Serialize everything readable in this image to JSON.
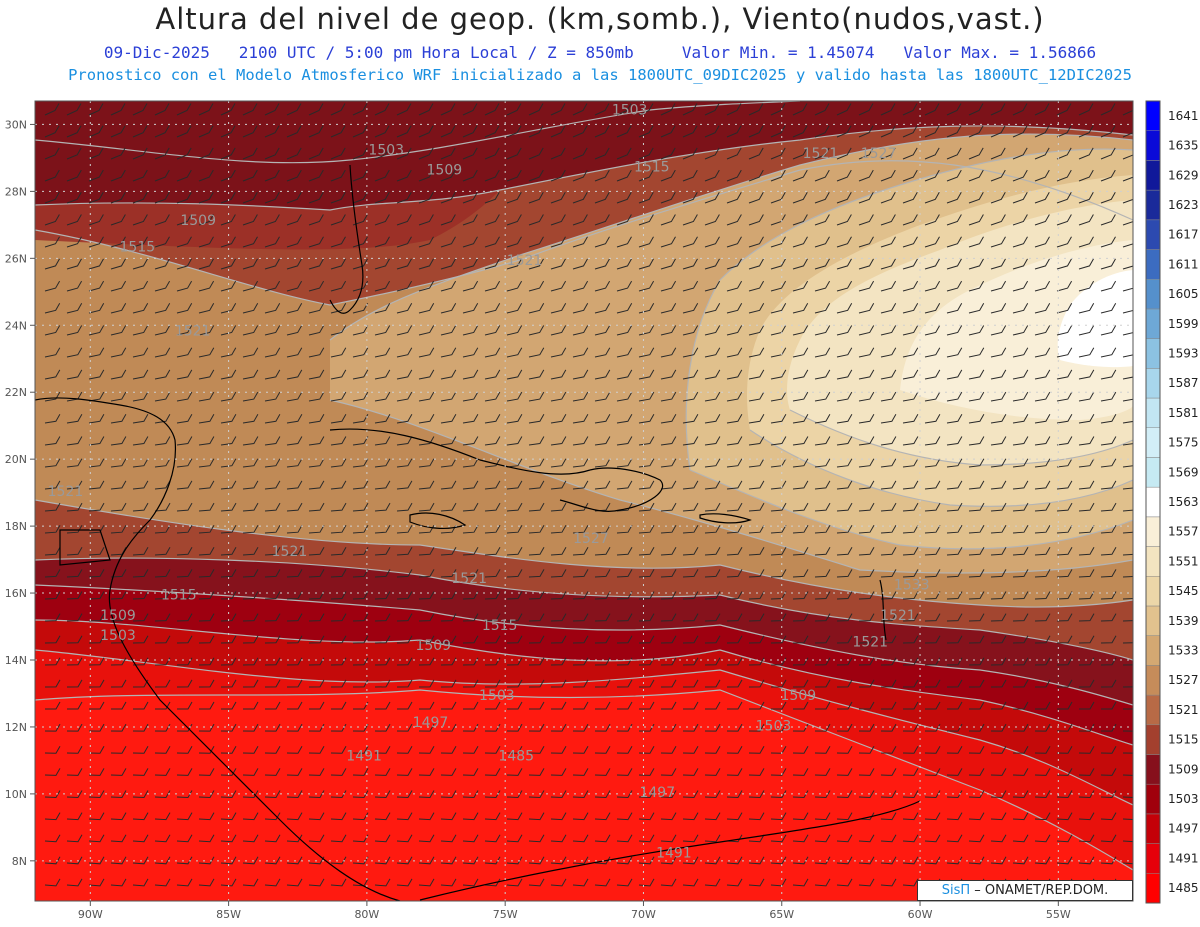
{
  "header": {
    "title": "Altura del nivel de geop. (km,somb.), Viento(nudos,vast.)",
    "date": "09-Dic-2025",
    "time": "2100 UTC / 5:00 pm Hora Local / Z = 850mb",
    "min": "Valor Min. = 1.45074",
    "max": "Valor Max. = 1.56866",
    "model": "Pronostico con el Modelo Atmosferico WRF inicializado a las 1800UTC_09DIC2025 y valido hasta las  1800UTC_12DIC2025"
  },
  "map": {
    "lon_range": [
      -92,
      -52.3
    ],
    "lat_range": [
      6.8,
      30.7
    ],
    "lon_ticks": [
      {
        "v": -90,
        "l": "90W"
      },
      {
        "v": -85,
        "l": "85W"
      },
      {
        "v": -80,
        "l": "80W"
      },
      {
        "v": -75,
        "l": "75W"
      },
      {
        "v": -70,
        "l": "70W"
      },
      {
        "v": -65,
        "l": "65W"
      },
      {
        "v": -60,
        "l": "60W"
      },
      {
        "v": -55,
        "l": "55W"
      }
    ],
    "lat_ticks": [
      {
        "v": 8,
        "l": "8N"
      },
      {
        "v": 10,
        "l": "10N"
      },
      {
        "v": 12,
        "l": "12N"
      },
      {
        "v": 14,
        "l": "14N"
      },
      {
        "v": 16,
        "l": "16N"
      },
      {
        "v": 18,
        "l": "18N"
      },
      {
        "v": 20,
        "l": "20N"
      },
      {
        "v": 22,
        "l": "22N"
      },
      {
        "v": 24,
        "l": "24N"
      },
      {
        "v": 26,
        "l": "26N"
      },
      {
        "v": 28,
        "l": "28N"
      },
      {
        "v": 30,
        "l": "30N"
      }
    ],
    "contour_labels": [
      {
        "t": "1503",
        "lon": -70.5,
        "lat": 30.3
      },
      {
        "t": "1503",
        "lon": -79.3,
        "lat": 29.1
      },
      {
        "t": "1509",
        "lon": -77.2,
        "lat": 28.5
      },
      {
        "t": "1515",
        "lon": -69.7,
        "lat": 28.6
      },
      {
        "t": "1521",
        "lon": -63.6,
        "lat": 29.0
      },
      {
        "t": "1527",
        "lon": -61.5,
        "lat": 29.0
      },
      {
        "t": "1509",
        "lon": -86.1,
        "lat": 27.0
      },
      {
        "t": "1515",
        "lon": -88.3,
        "lat": 26.2
      },
      {
        "t": "1521",
        "lon": -74.3,
        "lat": 25.8
      },
      {
        "t": "1521",
        "lon": -86.3,
        "lat": 23.7
      },
      {
        "t": "1521",
        "lon": -90.9,
        "lat": 18.9
      },
      {
        "t": "1521",
        "lon": -82.8,
        "lat": 17.1
      },
      {
        "t": "1521",
        "lon": -76.3,
        "lat": 16.3
      },
      {
        "t": "1527",
        "lon": -71.9,
        "lat": 17.5
      },
      {
        "t": "1515",
        "lon": -86.8,
        "lat": 15.8
      },
      {
        "t": "1509",
        "lon": -89.0,
        "lat": 15.2
      },
      {
        "t": "1503",
        "lon": -89.0,
        "lat": 14.6
      },
      {
        "t": "1509",
        "lon": -77.6,
        "lat": 14.3
      },
      {
        "t": "1515",
        "lon": -75.2,
        "lat": 14.9
      },
      {
        "t": "1503",
        "lon": -75.3,
        "lat": 12.8
      },
      {
        "t": "1497",
        "lon": -77.7,
        "lat": 12.0
      },
      {
        "t": "1509",
        "lon": -64.4,
        "lat": 12.8
      },
      {
        "t": "1503",
        "lon": -65.3,
        "lat": 11.9
      },
      {
        "t": "1491",
        "lon": -80.1,
        "lat": 11.0
      },
      {
        "t": "1485",
        "lon": -74.6,
        "lat": 11.0
      },
      {
        "t": "1497",
        "lon": -69.5,
        "lat": 9.9
      },
      {
        "t": "1491",
        "lon": -68.9,
        "lat": 8.1
      },
      {
        "t": "1521",
        "lon": -61.8,
        "lat": 14.4
      },
      {
        "t": "1521",
        "lon": -60.8,
        "lat": 15.2
      },
      {
        "t": "1533",
        "lon": -60.3,
        "lat": 16.1
      }
    ]
  },
  "colorbar": {
    "levels": [
      1485,
      1491,
      1497,
      1503,
      1509,
      1515,
      1521,
      1527,
      1533,
      1539,
      1545,
      1551,
      1557,
      1563,
      1569,
      1575,
      1581,
      1587,
      1593,
      1599,
      1605,
      1611,
      1617,
      1623,
      1629,
      1635,
      1641
    ],
    "labels": [
      "1485",
      "1491",
      "1497",
      "1503",
      "1509",
      "1515",
      "1521",
      "1527",
      "1533",
      "1539",
      "1545",
      "1551",
      "1557",
      "1563",
      "1569",
      "1575",
      "1581",
      "1587",
      "1593",
      "1599",
      "1605",
      "1611",
      "1617",
      "1623",
      "1629",
      "1635",
      "1641"
    ],
    "colors": [
      "#ff0000",
      "#e6000a",
      "#c40008",
      "#a0000c",
      "#86101c",
      "#a3402e",
      "#b86a46",
      "#c68c5a",
      "#d4a872",
      "#e2c28e",
      "#ecd6a8",
      "#f3e4c0",
      "#f9efd8",
      "#ffffff",
      "#c6eaf3",
      "#d2eef7",
      "#c2e6f3",
      "#a8d6ec",
      "#8cc2e2",
      "#6ea8d6",
      "#5590cc",
      "#3c6cc0",
      "#2c4ab0",
      "#1a2a9a",
      "#10189a",
      "#0a0ad8",
      "#0000ff"
    ]
  },
  "credit": {
    "brand": "SisΠ",
    "org": "– ONAMET/REP.DOM."
  }
}
